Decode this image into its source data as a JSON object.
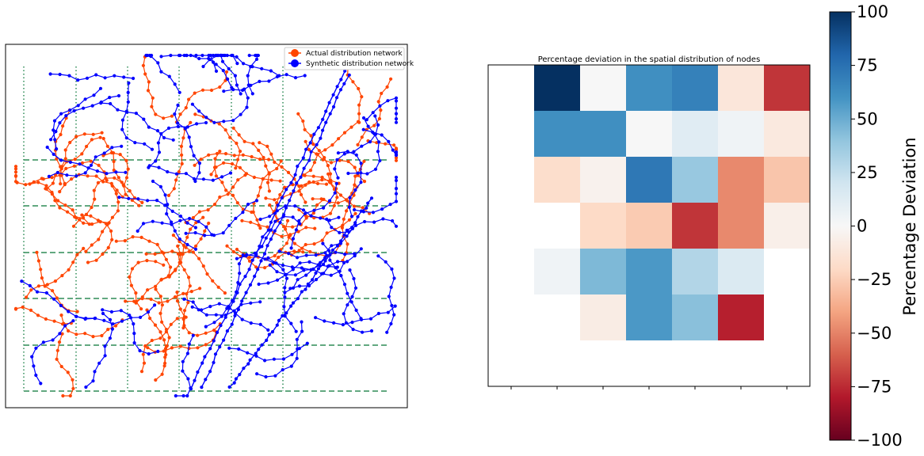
{
  "chart_data": [
    {
      "type": "scatter",
      "legend": [
        {
          "name": "Actual distribution network",
          "color": "#ff4500"
        },
        {
          "name": "Synthetic distribution network",
          "color": "#0000ff"
        }
      ],
      "legend_position": "top-right",
      "grid": {
        "style": "dashed-and-dotted",
        "color": "#2e8b57",
        "columns": 6,
        "rows": 5
      },
      "axes_ticks": "none"
    },
    {
      "type": "heatmap",
      "title": "Percentage deviation in the spatial distribution of nodes",
      "colormap": "RdBu",
      "vmin": -100,
      "vmax": 100,
      "rows": 7,
      "cols": 7,
      "values": [
        [
          null,
          100,
          0,
          62,
          68,
          -12,
          -72
        ],
        [
          null,
          62,
          62,
          0,
          12,
          4,
          -10
        ],
        [
          null,
          -18,
          -4,
          72,
          38,
          -48,
          -28
        ],
        [
          null,
          null,
          -20,
          -26,
          -72,
          -48,
          -6
        ],
        [
          null,
          4,
          45,
          58,
          30,
          15,
          null
        ],
        [
          null,
          null,
          -8,
          58,
          42,
          -78,
          null
        ],
        [
          null,
          null,
          null,
          null,
          null,
          null,
          null
        ]
      ],
      "colorbar": {
        "label": "Percentage Deviation",
        "ticks": [
          "100",
          "75",
          "50",
          "25",
          "0",
          "−25",
          "−50",
          "−75",
          "−100"
        ]
      }
    }
  ]
}
